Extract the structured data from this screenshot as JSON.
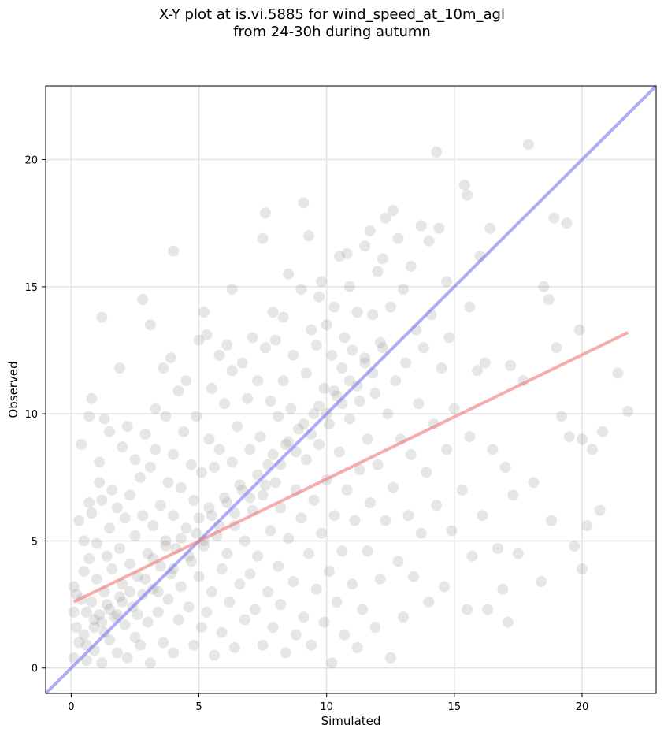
{
  "chart_data": {
    "type": "scatter",
    "title_lines": [
      "X-Y plot at is.vi.5885 for wind_speed_at_10m_agl",
      "from 24-30h during autumn"
    ],
    "xlabel": "Simulated",
    "ylabel": "Observed",
    "xlim": [
      -1.0,
      22.9
    ],
    "ylim": [
      -1.0,
      22.9
    ],
    "xticks": [
      0,
      5,
      10,
      15,
      20
    ],
    "yticks": [
      0,
      5,
      10,
      15,
      20
    ],
    "grid": true,
    "point_color": "#808080",
    "identity_line": {
      "from": [
        -1.0,
        -1.0
      ],
      "to": [
        22.9,
        22.9
      ],
      "color": "#7777ee"
    },
    "regression_line": {
      "from": [
        0.1,
        2.6
      ],
      "to": [
        21.8,
        13.2
      ],
      "color": "#ee7777"
    },
    "points": [
      [
        0.1,
        3.2
      ],
      [
        0.1,
        2.2
      ],
      [
        0.1,
        0.4
      ],
      [
        0.2,
        2.9
      ],
      [
        0.2,
        1.6
      ],
      [
        0.3,
        5.8
      ],
      [
        0.3,
        1.0
      ],
      [
        0.4,
        8.8
      ],
      [
        0.4,
        2.7
      ],
      [
        0.5,
        5.0
      ],
      [
        0.5,
        3.8
      ],
      [
        0.5,
        1.3
      ],
      [
        0.6,
        2.2
      ],
      [
        0.6,
        0.3
      ],
      [
        0.7,
        6.5
      ],
      [
        0.7,
        9.9
      ],
      [
        0.7,
        4.3
      ],
      [
        0.8,
        10.6
      ],
      [
        0.8,
        6.1
      ],
      [
        0.8,
        2.6
      ],
      [
        0.9,
        1.9
      ],
      [
        0.9,
        0.7
      ],
      [
        1.0,
        4.9
      ],
      [
        1.0,
        3.5
      ],
      [
        1.1,
        8.1
      ],
      [
        1.1,
        7.3
      ],
      [
        1.1,
        2.1
      ],
      [
        1.2,
        13.8
      ],
      [
        1.2,
        6.6
      ],
      [
        1.2,
        0.2
      ],
      [
        1.3,
        9.8
      ],
      [
        1.3,
        3.0
      ],
      [
        1.3,
        1.4
      ],
      [
        1.4,
        4.4
      ],
      [
        1.4,
        2.5
      ],
      [
        1.5,
        9.3
      ],
      [
        1.5,
        5.5
      ],
      [
        1.5,
        1.1
      ],
      [
        1.6,
        7.0
      ],
      [
        1.6,
        3.9
      ],
      [
        1.7,
        2.0
      ],
      [
        1.8,
        6.3
      ],
      [
        1.8,
        0.6
      ],
      [
        1.9,
        11.8
      ],
      [
        1.9,
        4.7
      ],
      [
        1.9,
        2.8
      ],
      [
        2.0,
        8.7
      ],
      [
        2.0,
        3.3
      ],
      [
        2.1,
        5.9
      ],
      [
        2.1,
        1.7
      ],
      [
        2.2,
        9.5
      ],
      [
        2.2,
        0.4
      ],
      [
        2.3,
        6.8
      ],
      [
        2.3,
        4.1
      ],
      [
        2.4,
        2.4
      ],
      [
        2.5,
        8.2
      ],
      [
        2.5,
        5.2
      ],
      [
        2.5,
        1.2
      ],
      [
        2.6,
        3.6
      ],
      [
        2.7,
        7.5
      ],
      [
        2.7,
        0.9
      ],
      [
        2.8,
        14.5
      ],
      [
        2.8,
        6.0
      ],
      [
        2.8,
        2.9
      ],
      [
        2.9,
        9.2
      ],
      [
        3.0,
        4.5
      ],
      [
        3.0,
        1.8
      ],
      [
        3.1,
        13.5
      ],
      [
        3.1,
        7.9
      ],
      [
        3.1,
        0.2
      ],
      [
        3.2,
        5.6
      ],
      [
        3.2,
        3.1
      ],
      [
        3.3,
        10.2
      ],
      [
        3.3,
        8.6
      ],
      [
        3.4,
        2.2
      ],
      [
        3.5,
        6.4
      ],
      [
        3.5,
        4.0
      ],
      [
        3.6,
        11.8
      ],
      [
        3.6,
        1.0
      ],
      [
        3.7,
        9.9
      ],
      [
        3.7,
        5.0
      ],
      [
        3.8,
        7.3
      ],
      [
        3.8,
        2.7
      ],
      [
        3.9,
        12.2
      ],
      [
        3.9,
        3.7
      ],
      [
        4.0,
        16.4
      ],
      [
        4.0,
        8.4
      ],
      [
        4.0,
        6.0
      ],
      [
        4.0,
        0.6
      ],
      [
        4.1,
        4.7
      ],
      [
        4.2,
        10.9
      ],
      [
        4.2,
        1.9
      ],
      [
        4.3,
        7.1
      ],
      [
        4.3,
        3.2
      ],
      [
        4.4,
        9.3
      ],
      [
        4.5,
        11.3
      ],
      [
        4.5,
        5.5
      ],
      [
        4.6,
        2.4
      ],
      [
        4.7,
        8.0
      ],
      [
        4.7,
        4.2
      ],
      [
        4.8,
        6.6
      ],
      [
        4.8,
        0.9
      ],
      [
        4.9,
        9.9
      ],
      [
        5.0,
        12.9
      ],
      [
        5.0,
        5.9
      ],
      [
        5.0,
        3.6
      ],
      [
        5.1,
        7.7
      ],
      [
        5.1,
        1.6
      ],
      [
        5.2,
        14.0
      ],
      [
        5.2,
        4.8
      ],
      [
        5.3,
        13.1
      ],
      [
        5.3,
        2.2
      ],
      [
        5.4,
        9.0
      ],
      [
        5.4,
        6.3
      ],
      [
        5.5,
        11.0
      ],
      [
        5.5,
        3.0
      ],
      [
        5.6,
        7.9
      ],
      [
        5.6,
        0.5
      ],
      [
        5.7,
        5.2
      ],
      [
        5.8,
        12.3
      ],
      [
        5.8,
        8.6
      ],
      [
        5.9,
        3.9
      ],
      [
        5.9,
        1.4
      ],
      [
        6.0,
        10.4
      ],
      [
        6.0,
        6.7
      ],
      [
        6.1,
        12.7
      ],
      [
        6.1,
        4.5
      ],
      [
        6.2,
        2.6
      ],
      [
        6.3,
        11.7
      ],
      [
        6.3,
        8.1
      ],
      [
        6.3,
        14.9
      ],
      [
        6.4,
        5.6
      ],
      [
        6.4,
        0.8
      ],
      [
        6.5,
        9.5
      ],
      [
        6.6,
        3.3
      ],
      [
        6.6,
        7.2
      ],
      [
        6.7,
        12.0
      ],
      [
        6.8,
        5.0
      ],
      [
        6.8,
        1.9
      ],
      [
        6.9,
        10.6
      ],
      [
        7.0,
        8.6
      ],
      [
        7.0,
        3.7
      ],
      [
        7.1,
        13.0
      ],
      [
        7.1,
        6.2
      ],
      [
        7.2,
        2.3
      ],
      [
        7.3,
        11.3
      ],
      [
        7.3,
        4.4
      ],
      [
        7.4,
        9.1
      ],
      [
        7.5,
        16.9
      ],
      [
        7.5,
        6.8
      ],
      [
        7.5,
        0.9
      ],
      [
        7.6,
        17.9
      ],
      [
        7.6,
        12.6
      ],
      [
        7.7,
        8.0
      ],
      [
        7.7,
        3.0
      ],
      [
        7.8,
        10.5
      ],
      [
        7.8,
        5.4
      ],
      [
        7.9,
        14.0
      ],
      [
        7.9,
        1.6
      ],
      [
        8.0,
        12.9
      ],
      [
        8.0,
        7.3
      ],
      [
        8.1,
        9.9
      ],
      [
        8.1,
        4.0
      ],
      [
        8.2,
        6.3
      ],
      [
        8.2,
        2.5
      ],
      [
        8.3,
        13.8
      ],
      [
        8.3,
        11.3
      ],
      [
        8.4,
        8.8
      ],
      [
        8.4,
        0.6
      ],
      [
        8.5,
        15.5
      ],
      [
        8.5,
        5.1
      ],
      [
        8.6,
        10.2
      ],
      [
        8.7,
        12.3
      ],
      [
        8.7,
        3.4
      ],
      [
        8.8,
        7.0
      ],
      [
        8.8,
        1.3
      ],
      [
        8.9,
        9.4
      ],
      [
        9.0,
        14.9
      ],
      [
        9.0,
        5.9
      ],
      [
        9.1,
        2.0
      ],
      [
        9.1,
        18.3
      ],
      [
        9.2,
        11.6
      ],
      [
        9.2,
        8.2
      ],
      [
        9.3,
        17.0
      ],
      [
        9.3,
        4.5
      ],
      [
        9.4,
        13.3
      ],
      [
        9.4,
        0.9
      ],
      [
        9.5,
        10.0
      ],
      [
        9.5,
        6.6
      ],
      [
        9.6,
        12.7
      ],
      [
        9.6,
        3.1
      ],
      [
        9.7,
        14.6
      ],
      [
        9.7,
        8.8
      ],
      [
        9.8,
        15.2
      ],
      [
        9.8,
        5.3
      ],
      [
        9.9,
        11.0
      ],
      [
        9.9,
        1.8
      ],
      [
        10.0,
        13.5
      ],
      [
        10.0,
        7.4
      ],
      [
        10.1,
        9.6
      ],
      [
        10.1,
        3.8
      ],
      [
        10.2,
        12.3
      ],
      [
        10.2,
        0.2
      ],
      [
        10.3,
        14.2
      ],
      [
        10.3,
        6.0
      ],
      [
        10.4,
        10.7
      ],
      [
        10.4,
        2.6
      ],
      [
        10.5,
        16.2
      ],
      [
        10.5,
        8.5
      ],
      [
        10.6,
        4.6
      ],
      [
        10.6,
        11.8
      ],
      [
        10.7,
        13.0
      ],
      [
        10.7,
        1.3
      ],
      [
        10.8,
        16.3
      ],
      [
        10.8,
        7.0
      ],
      [
        10.9,
        15.0
      ],
      [
        10.9,
        9.8
      ],
      [
        11.0,
        3.3
      ],
      [
        11.0,
        12.5
      ],
      [
        11.1,
        5.8
      ],
      [
        11.2,
        14.0
      ],
      [
        11.2,
        0.8
      ],
      [
        11.3,
        10.5
      ],
      [
        11.3,
        7.8
      ],
      [
        11.4,
        2.3
      ],
      [
        11.5,
        16.6
      ],
      [
        11.5,
        12.2
      ],
      [
        11.6,
        4.6
      ],
      [
        11.6,
        9.0
      ],
      [
        11.7,
        17.2
      ],
      [
        11.7,
        6.5
      ],
      [
        11.8,
        13.9
      ],
      [
        11.9,
        1.6
      ],
      [
        11.9,
        10.8
      ],
      [
        12.0,
        15.6
      ],
      [
        12.0,
        8.0
      ],
      [
        12.1,
        3.5
      ],
      [
        12.2,
        12.6
      ],
      [
        12.2,
        16.1
      ],
      [
        12.3,
        5.8
      ],
      [
        12.3,
        17.7
      ],
      [
        12.4,
        10.0
      ],
      [
        12.5,
        14.2
      ],
      [
        12.5,
        0.4
      ],
      [
        12.6,
        7.1
      ],
      [
        12.6,
        18.0
      ],
      [
        12.7,
        11.3
      ],
      [
        12.8,
        4.2
      ],
      [
        12.8,
        16.9
      ],
      [
        12.9,
        9.0
      ],
      [
        13.0,
        14.9
      ],
      [
        13.0,
        2.0
      ],
      [
        13.1,
        12.0
      ],
      [
        13.2,
        6.0
      ],
      [
        13.3,
        15.8
      ],
      [
        13.3,
        8.4
      ],
      [
        13.4,
        3.6
      ],
      [
        13.5,
        13.3
      ],
      [
        13.6,
        10.4
      ],
      [
        13.7,
        17.4
      ],
      [
        13.7,
        5.3
      ],
      [
        13.8,
        12.6
      ],
      [
        13.9,
        7.7
      ],
      [
        14.0,
        16.8
      ],
      [
        14.0,
        2.6
      ],
      [
        14.1,
        13.9
      ],
      [
        14.2,
        9.6
      ],
      [
        14.3,
        20.3
      ],
      [
        14.3,
        6.4
      ],
      [
        14.4,
        17.3
      ],
      [
        14.5,
        11.8
      ],
      [
        14.6,
        3.2
      ],
      [
        14.7,
        15.2
      ],
      [
        14.7,
        8.6
      ],
      [
        14.8,
        13.0
      ],
      [
        14.9,
        5.4
      ],
      [
        15.0,
        10.2
      ],
      [
        15.3,
        7.0
      ],
      [
        15.4,
        19.0
      ],
      [
        15.5,
        18.6
      ],
      [
        15.5,
        2.3
      ],
      [
        15.6,
        14.2
      ],
      [
        15.6,
        9.1
      ],
      [
        15.7,
        4.4
      ],
      [
        15.9,
        11.7
      ],
      [
        16.0,
        16.2
      ],
      [
        16.1,
        6.0
      ],
      [
        16.2,
        12.0
      ],
      [
        16.3,
        2.3
      ],
      [
        16.4,
        17.3
      ],
      [
        16.5,
        8.6
      ],
      [
        16.7,
        4.7
      ],
      [
        16.9,
        3.1
      ],
      [
        17.0,
        7.9
      ],
      [
        17.1,
        1.8
      ],
      [
        17.2,
        11.9
      ],
      [
        17.3,
        6.8
      ],
      [
        17.5,
        4.5
      ],
      [
        17.7,
        11.3
      ],
      [
        17.9,
        20.6
      ],
      [
        18.1,
        7.3
      ],
      [
        18.4,
        3.4
      ],
      [
        18.5,
        15.0
      ],
      [
        18.7,
        14.5
      ],
      [
        18.8,
        5.8
      ],
      [
        18.9,
        17.7
      ],
      [
        19.0,
        12.6
      ],
      [
        19.2,
        9.9
      ],
      [
        19.4,
        17.5
      ],
      [
        19.5,
        9.1
      ],
      [
        19.7,
        4.8
      ],
      [
        19.9,
        13.3
      ],
      [
        20.0,
        3.9
      ],
      [
        20.0,
        9.0
      ],
      [
        20.2,
        5.6
      ],
      [
        20.4,
        8.6
      ],
      [
        20.7,
        6.2
      ],
      [
        20.8,
        9.3
      ],
      [
        21.4,
        11.6
      ],
      [
        21.8,
        10.1
      ],
      [
        0.6,
        0.9
      ],
      [
        0.9,
        1.6
      ],
      [
        1.2,
        1.8
      ],
      [
        1.5,
        2.3
      ],
      [
        1.8,
        2.1
      ],
      [
        2.0,
        2.6
      ],
      [
        2.3,
        3.0
      ],
      [
        2.6,
        2.1
      ],
      [
        2.9,
        3.5
      ],
      [
        3.2,
        4.3
      ],
      [
        3.4,
        3.0
      ],
      [
        3.7,
        4.8
      ],
      [
        4.0,
        3.9
      ],
      [
        4.3,
        5.1
      ],
      [
        4.6,
        4.4
      ],
      [
        4.9,
        5.3
      ],
      [
        5.2,
        5.0
      ],
      [
        5.5,
        6.0
      ],
      [
        5.8,
        5.6
      ],
      [
        6.1,
        6.5
      ],
      [
        6.4,
        6.1
      ],
      [
        6.7,
        7.0
      ],
      [
        7.0,
        6.7
      ],
      [
        7.3,
        7.6
      ],
      [
        7.6,
        7.2
      ],
      [
        7.9,
        8.4
      ],
      [
        8.2,
        8.0
      ],
      [
        8.5,
        8.9
      ],
      [
        8.8,
        8.5
      ],
      [
        9.1,
        9.6
      ],
      [
        9.4,
        9.2
      ],
      [
        9.7,
        10.3
      ],
      [
        10.0,
        10.0
      ],
      [
        10.3,
        10.9
      ],
      [
        10.6,
        10.4
      ],
      [
        10.9,
        11.3
      ],
      [
        11.2,
        11.1
      ],
      [
        11.5,
        12.0
      ],
      [
        11.8,
        11.6
      ],
      [
        12.1,
        12.8
      ]
    ]
  }
}
